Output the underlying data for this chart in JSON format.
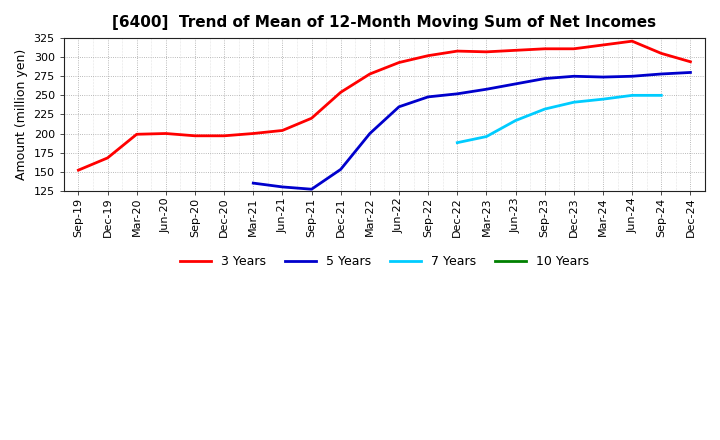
{
  "title": "[6400]  Trend of Mean of 12-Month Moving Sum of Net Incomes",
  "ylabel": "Amount (million yen)",
  "background_color": "#ffffff",
  "plot_bg_color": "#ffffff",
  "grid_color": "#999999",
  "ylim": [
    125,
    325
  ],
  "yticks": [
    125,
    150,
    175,
    200,
    225,
    250,
    275,
    300,
    325
  ],
  "x_labels": [
    "Sep-19",
    "Dec-19",
    "Mar-20",
    "Jun-20",
    "Sep-20",
    "Dec-20",
    "Mar-21",
    "Jun-21",
    "Sep-21",
    "Dec-21",
    "Mar-22",
    "Jun-22",
    "Sep-22",
    "Dec-22",
    "Mar-23",
    "Jun-23",
    "Sep-23",
    "Dec-23",
    "Mar-24",
    "Jun-24",
    "Sep-24",
    "Dec-24"
  ],
  "series_3y_color": "#ff0000",
  "series_5y_color": "#0000cc",
  "series_7y_color": "#00ccff",
  "series_10y_color": "#008000",
  "series_3y": [
    152,
    168,
    199,
    200,
    197,
    197,
    200,
    204,
    220,
    254,
    278,
    293,
    302,
    308,
    307,
    309,
    311,
    311,
    316,
    321,
    305,
    294
  ],
  "series_5y": [
    null,
    null,
    null,
    null,
    null,
    null,
    135,
    130,
    127,
    153,
    200,
    235,
    248,
    252,
    258,
    265,
    272,
    275,
    274,
    275,
    278,
    280
  ],
  "series_7y": [
    null,
    null,
    null,
    null,
    null,
    null,
    null,
    null,
    null,
    null,
    null,
    null,
    null,
    188,
    196,
    217,
    232,
    241,
    245,
    250,
    250,
    null
  ],
  "series_10y": [],
  "legend_labels": [
    "3 Years",
    "5 Years",
    "7 Years",
    "10 Years"
  ],
  "legend_colors": [
    "#ff0000",
    "#0000cc",
    "#00ccff",
    "#008000"
  ],
  "linewidth": 2.0,
  "title_fontsize": 11,
  "axis_fontsize": 8,
  "ylabel_fontsize": 9
}
